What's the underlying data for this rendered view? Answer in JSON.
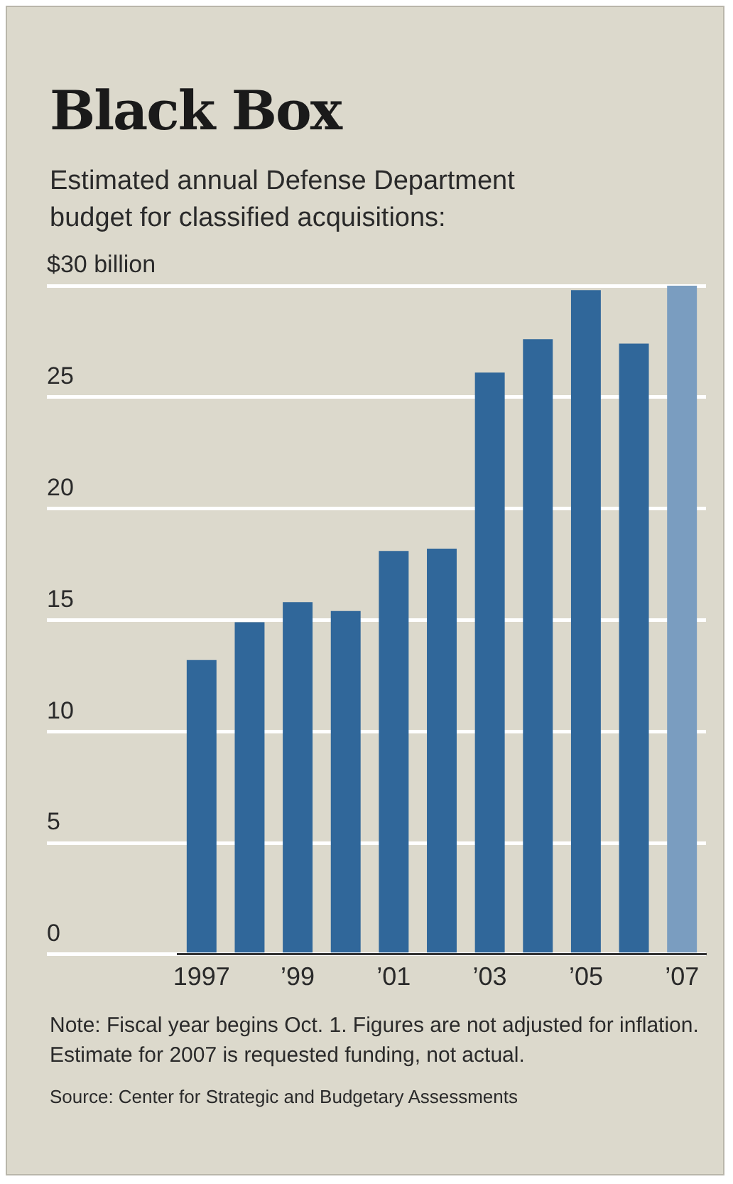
{
  "chart_data": {
    "type": "bar",
    "title": "Black Box",
    "subtitle": "Estimated annual Defense Department budget for classified acquisitions:",
    "categories": [
      "1997",
      null,
      "’99",
      null,
      "’01",
      null,
      "’03",
      null,
      "’05",
      null,
      "’07"
    ],
    "values": [
      13.2,
      14.9,
      15.8,
      15.4,
      18.1,
      18.2,
      26.1,
      27.6,
      29.8,
      27.4,
      30
    ],
    "colors": [
      "#30679a",
      "#30679a",
      "#30679a",
      "#30679a",
      "#30679a",
      "#30679a",
      "#30679a",
      "#30679a",
      "#30679a",
      "#30679a",
      "#7a9dc0"
    ],
    "ylim": [
      0,
      30
    ],
    "yticks": [
      0,
      5,
      10,
      15,
      20,
      25,
      {
        "value": 30,
        "label": "$30 billion"
      }
    ],
    "grid": "y",
    "legend": false,
    "annotations": [
      "Note: Fiscal year begins Oct. 1. Figures are not adjusted for inflation. Estimate for 2007 is requested funding, not actual.",
      "Source: Center for Strategic and Budgetary Assessments"
    ]
  }
}
